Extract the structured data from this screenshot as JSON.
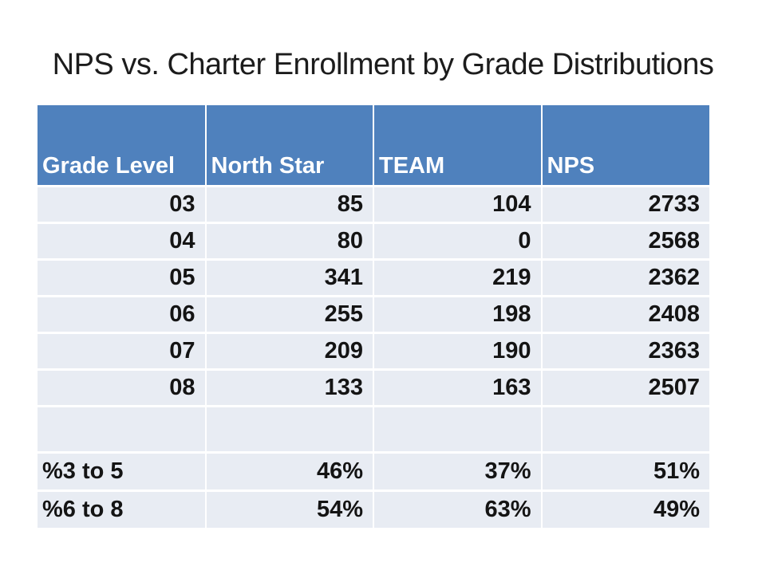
{
  "slide": {
    "title": "NPS vs. Charter Enrollment by Grade Distributions"
  },
  "table": {
    "columns": [
      "Grade Level",
      "North Star",
      "TEAM",
      "NPS"
    ],
    "rows": [
      [
        "03",
        "85",
        "104",
        "2733"
      ],
      [
        "04",
        "80",
        "0",
        "2568"
      ],
      [
        "05",
        "341",
        "219",
        "2362"
      ],
      [
        "06",
        "255",
        "198",
        "2408"
      ],
      [
        "07",
        "209",
        "190",
        "2363"
      ],
      [
        "08",
        "133",
        "163",
        "2507"
      ],
      [
        "",
        "",
        "",
        ""
      ],
      [
        "%3 to 5",
        "46%",
        "37%",
        "51%"
      ],
      [
        "%6 to 8",
        "54%",
        "63%",
        "49%"
      ]
    ]
  },
  "colors": {
    "header_bg": "#4f81bd",
    "header_text": "#ffffff",
    "row_bg": "#e8ecf3",
    "body_text": "#141414",
    "gridline": "#ffffff",
    "title_text": "#1c1c1c"
  }
}
